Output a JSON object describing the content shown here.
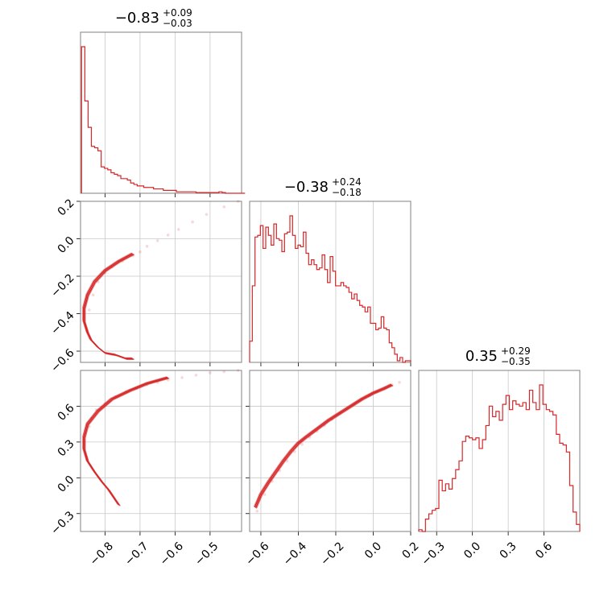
{
  "chart_data": {
    "type": "corner",
    "color": "#d62728",
    "parameters": [
      {
        "title_main": "−0.83",
        "title_plus": "+0.09",
        "title_minus": "−0.03",
        "range": [
          -0.87,
          -0.41
        ],
        "ticks": [
          -0.8,
          -0.7,
          -0.6,
          -0.5
        ],
        "tick_labels": [
          "−0.8",
          "−0.7",
          "−0.6",
          "−0.5"
        ]
      },
      {
        "title_main": "−0.38",
        "title_plus": "+0.24",
        "title_minus": "−0.18",
        "range": [
          -0.66,
          0.2
        ],
        "ticks": [
          -0.6,
          -0.4,
          -0.2,
          0.0,
          0.2
        ],
        "tick_labels": [
          "−0.6",
          "−0.4",
          "−0.2",
          "0.0",
          "0.2"
        ]
      },
      {
        "title_main": "0.35",
        "title_plus": "+0.29",
        "title_minus": "−0.35",
        "range": [
          -0.45,
          0.9
        ],
        "ticks": [
          -0.3,
          0.0,
          0.3,
          0.6
        ],
        "tick_labels": [
          "−0.3",
          "0.0",
          "0.3",
          "0.6"
        ]
      }
    ],
    "hist1d": [
      {
        "param": 0,
        "edges": [
          -0.867,
          -0.4
        ],
        "counts": [
          100,
          63,
          45,
          32,
          31,
          29,
          18,
          17,
          16,
          14,
          13,
          12,
          10,
          10,
          9,
          7,
          6,
          5,
          5,
          4,
          4,
          4,
          3,
          3,
          3,
          2,
          2,
          2,
          2,
          1,
          1,
          1,
          1,
          1,
          1,
          0.5,
          0.5,
          0.5,
          0.5,
          0.5,
          0.5,
          0.5,
          1,
          0.5,
          0,
          0,
          0,
          0,
          0,
          0
        ]
      },
      {
        "param": 1,
        "edges": [
          -0.66,
          0.2
        ],
        "counts": [
          13,
          47,
          77,
          78,
          84,
          70,
          83,
          78,
          72,
          85,
          76,
          75,
          68,
          79,
          80,
          90,
          78,
          70,
          72,
          71,
          80,
          67,
          60,
          63,
          60,
          57,
          58,
          66,
          57,
          49,
          65,
          56,
          47,
          47,
          49,
          47,
          46,
          43,
          39,
          42,
          38,
          35,
          34,
          31,
          34,
          24,
          24,
          20,
          21,
          28,
          21,
          20,
          12,
          9,
          5,
          1,
          3,
          0,
          1,
          1
        ]
      },
      {
        "param": 2,
        "edges": [
          -0.45,
          0.9
        ],
        "counts": [
          1,
          0,
          7,
          10,
          12,
          13,
          29,
          23,
          27,
          24,
          30,
          35,
          40,
          51,
          54,
          53,
          52,
          53,
          47,
          52,
          60,
          71,
          65,
          68,
          63,
          72,
          77,
          69,
          74,
          72,
          71,
          73,
          69,
          80,
          73,
          69,
          83,
          72,
          69,
          68,
          66,
          55,
          50,
          49,
          45,
          26,
          11,
          4
        ]
      }
    ],
    "scatter2d": [
      {
        "x_param": 0,
        "y_param": 1,
        "x": [
          -0.845,
          -0.834,
          -0.82,
          -0.8,
          -0.78,
          -0.75,
          -0.72,
          -0.7,
          -0.68,
          -0.65,
          -0.62,
          -0.59,
          -0.55,
          -0.51,
          -0.46,
          -0.42
        ],
        "y": [
          -0.38,
          -0.3,
          -0.23,
          -0.18,
          -0.15,
          -0.12,
          -0.09,
          -0.07,
          -0.04,
          -0.01,
          0.02,
          0.05,
          0.09,
          0.13,
          0.17,
          0.2
        ]
      },
      {
        "x_param": 0,
        "y_param": 2,
        "x": [
          -0.845,
          -0.838,
          -0.825,
          -0.8,
          -0.77,
          -0.74,
          -0.71,
          -0.68,
          -0.65,
          -0.62,
          -0.58,
          -0.54,
          -0.5,
          -0.46,
          -0.42
        ],
        "y": [
          0.43,
          0.5,
          0.57,
          0.62,
          0.68,
          0.72,
          0.75,
          0.78,
          0.8,
          0.82,
          0.84,
          0.86,
          0.88,
          0.89,
          0.9
        ]
      },
      {
        "x_param": 1,
        "y_param": 2,
        "x": [
          -0.62,
          -0.58,
          -0.54,
          -0.5,
          -0.46,
          -0.42,
          -0.38,
          -0.34,
          -0.3,
          -0.26,
          -0.22,
          -0.18,
          -0.14,
          -0.1,
          -0.06,
          -0.02,
          0.02,
          0.06,
          0.1,
          0.14
        ],
        "y": [
          -0.28,
          -0.14,
          -0.03,
          0.06,
          0.14,
          0.22,
          0.28,
          0.34,
          0.39,
          0.44,
          0.49,
          0.54,
          0.58,
          0.62,
          0.66,
          0.69,
          0.72,
          0.75,
          0.78,
          0.8
        ]
      }
    ],
    "contour2d": [
      {
        "x_param": 0,
        "y_param": 1,
        "x": [
          -0.72,
          -0.76,
          -0.8,
          -0.83,
          -0.85,
          -0.86,
          -0.86,
          -0.85,
          -0.84,
          -0.82,
          -0.8,
          -0.77,
          -0.74,
          -0.72
        ],
        "y": [
          -0.08,
          -0.12,
          -0.17,
          -0.23,
          -0.3,
          -0.37,
          -0.44,
          -0.5,
          -0.54,
          -0.58,
          -0.61,
          -0.62,
          -0.64,
          -0.64
        ]
      },
      {
        "x_param": 0,
        "y_param": 2,
        "x": [
          -0.62,
          -0.68,
          -0.73,
          -0.78,
          -0.82,
          -0.85,
          -0.86,
          -0.86,
          -0.85,
          -0.83,
          -0.81,
          -0.79,
          -0.76
        ],
        "y": [
          0.84,
          0.79,
          0.73,
          0.66,
          0.56,
          0.45,
          0.34,
          0.24,
          0.14,
          0.05,
          -0.03,
          -0.1,
          -0.23
        ]
      },
      {
        "x_param": 1,
        "y_param": 2,
        "x": [
          -0.63,
          -0.6,
          -0.56,
          -0.52,
          -0.48,
          -0.44,
          -0.4,
          -0.36,
          -0.3,
          -0.24,
          -0.18,
          -0.12,
          -0.06,
          0.0,
          0.06,
          0.1
        ],
        "y": [
          -0.25,
          -0.14,
          -0.04,
          0.05,
          0.14,
          0.22,
          0.29,
          0.34,
          0.41,
          0.48,
          0.54,
          0.6,
          0.66,
          0.71,
          0.75,
          0.78
        ]
      }
    ],
    "grid": true
  }
}
